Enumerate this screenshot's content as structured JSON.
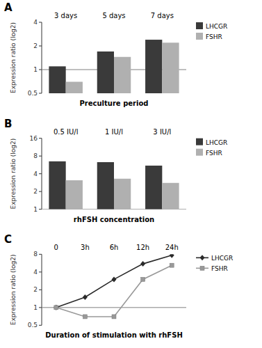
{
  "chart_data": [
    {
      "type": "bar",
      "title": "A",
      "categories": [
        "3 days",
        "5 days",
        "7 days"
      ],
      "series": [
        {
          "name": "LHCGR",
          "color": "#3a3a3a",
          "values": [
            1.1,
            1.7,
            2.4
          ]
        },
        {
          "name": "FSHR",
          "color": "#b0b0b0",
          "values": [
            0.7,
            1.45,
            2.2
          ]
        }
      ],
      "ylim": [
        0.5,
        4
      ],
      "yticks": [
        0.5,
        1,
        2,
        4
      ],
      "log": "y",
      "ylabel": "Expression ratio (log2)",
      "xlabel": "Preculture period",
      "hline": 1.0,
      "legend": "upper right"
    },
    {
      "type": "bar",
      "title": "B",
      "categories": [
        "0.5 IU/l",
        "1 IU/l",
        "3 IU/l"
      ],
      "series": [
        {
          "name": "LHCGR",
          "color": "#3a3a3a",
          "values": [
            6.5,
            6.3,
            5.5
          ]
        },
        {
          "name": "FSHR",
          "color": "#b0b0b0",
          "values": [
            3.1,
            3.3,
            2.8
          ]
        }
      ],
      "ylim": [
        1,
        16
      ],
      "yticks": [
        1,
        2,
        4,
        8,
        16
      ],
      "log": "y",
      "ylabel": "Expression ratio (log2)",
      "xlabel": "rhFSH concentration",
      "hline": 1.0,
      "legend": "upper right"
    },
    {
      "type": "line",
      "title": "C",
      "categories": [
        "0",
        "3h",
        "6h",
        "12h",
        "24h"
      ],
      "series": [
        {
          "name": "LHCGR",
          "color": "#2a2a2a",
          "marker": "diamond",
          "values": [
            1.0,
            1.5,
            3.0,
            5.5,
            7.7
          ]
        },
        {
          "name": "FSHR",
          "color": "#999999",
          "marker": "square",
          "values": [
            1.0,
            0.7,
            0.7,
            3.0,
            5.2
          ]
        }
      ],
      "ylim": [
        0.5,
        8
      ],
      "yticks": [
        0.5,
        1,
        2,
        4,
        8
      ],
      "log": "y",
      "ylabel": "Expression ratio (log2)",
      "xlabel": "Duration of stimulation with rhFSH",
      "hline": 1.0,
      "legend": "upper right"
    }
  ]
}
